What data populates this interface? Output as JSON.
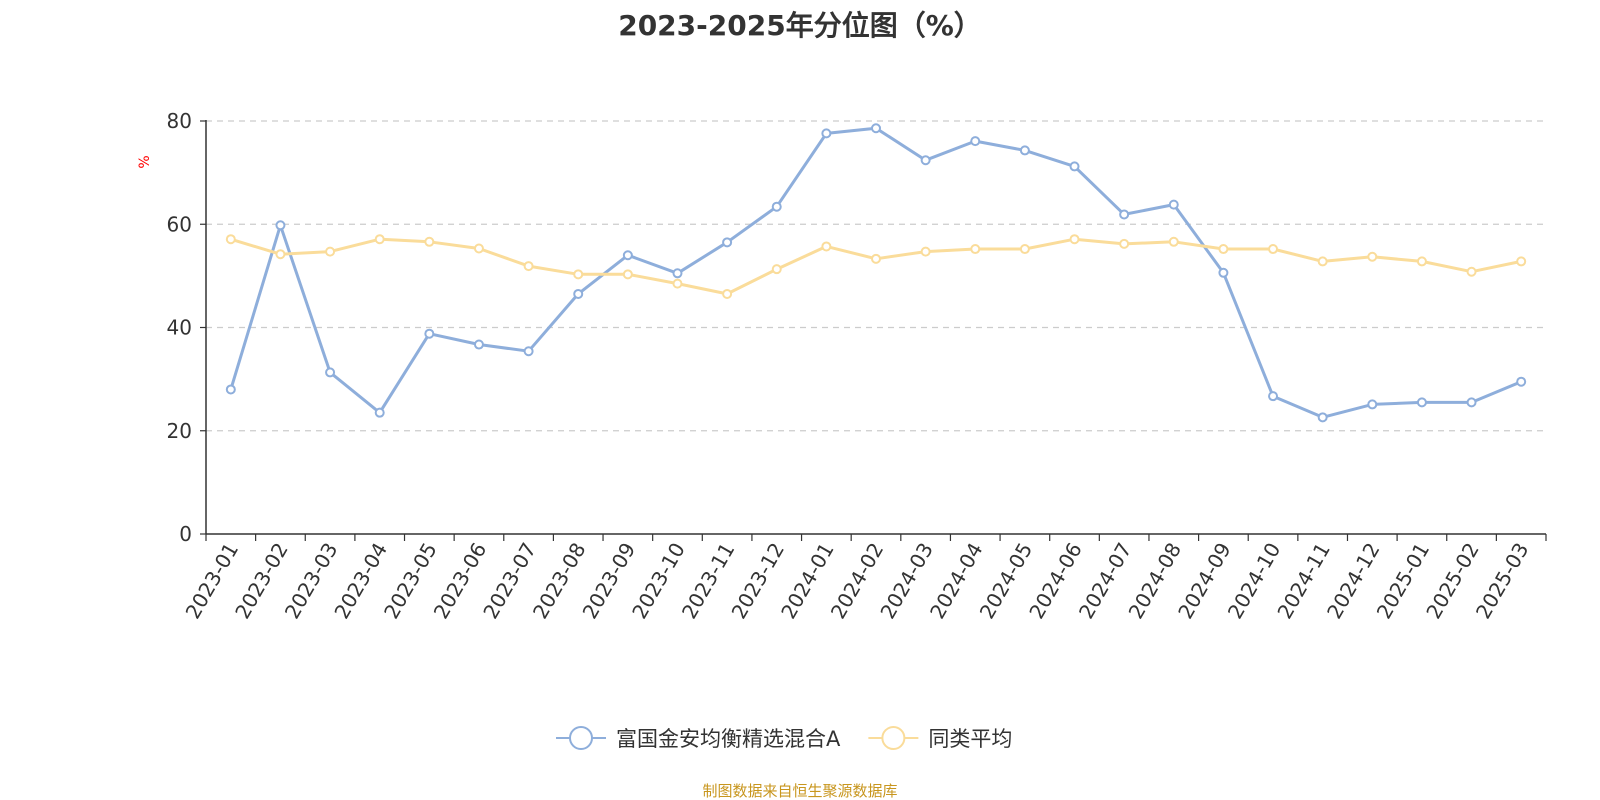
{
  "chart_data": {
    "type": "line",
    "title": "2023-2025年分位图（%）",
    "ylabel": "%",
    "xlabel": "",
    "ylim": [
      0,
      80
    ],
    "yticks": [
      0,
      20,
      40,
      60,
      80
    ],
    "grid": true,
    "legend_position": "bottom",
    "categories": [
      "2023-01",
      "2023-02",
      "2023-03",
      "2023-04",
      "2023-05",
      "2023-06",
      "2023-07",
      "2023-08",
      "2023-09",
      "2023-10",
      "2023-11",
      "2023-12",
      "2024-01",
      "2024-02",
      "2024-03",
      "2024-04",
      "2024-05",
      "2024-06",
      "2024-07",
      "2024-08",
      "2024-09",
      "2024-10",
      "2024-11",
      "2024-12",
      "2025-01",
      "2025-02",
      "2025-03"
    ],
    "series": [
      {
        "name": "富国金安均衡精选混合A",
        "color": "#8eaedb",
        "values": [
          28.0,
          59.8,
          31.3,
          23.5,
          38.8,
          36.7,
          35.4,
          46.5,
          54.0,
          50.5,
          56.5,
          63.4,
          77.6,
          78.6,
          72.4,
          76.1,
          74.3,
          71.2,
          61.9,
          63.8,
          50.6,
          26.7,
          22.6,
          25.1,
          25.5,
          25.5,
          29.5
        ]
      },
      {
        "name": "同类平均",
        "color": "#fadc9a",
        "values": [
          57.1,
          54.2,
          54.7,
          57.1,
          56.6,
          55.3,
          51.9,
          50.3,
          50.3,
          48.5,
          46.5,
          51.3,
          55.7,
          53.3,
          54.7,
          55.2,
          55.2,
          57.1,
          56.2,
          56.6,
          55.2,
          55.2,
          52.8,
          53.7,
          52.8,
          50.8,
          52.8
        ]
      }
    ]
  },
  "source_note": "制图数据来自恒生聚源数据库"
}
